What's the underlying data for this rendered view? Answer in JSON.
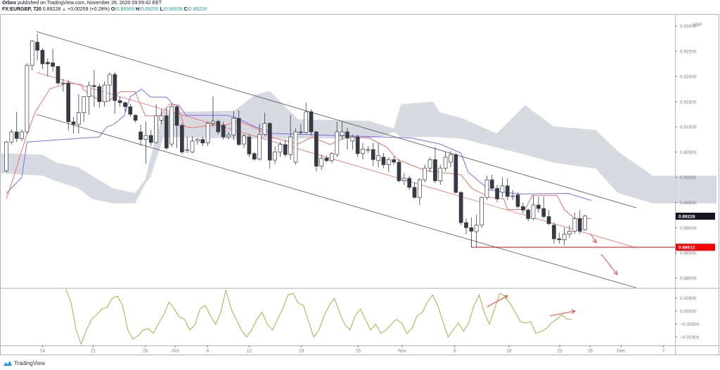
{
  "header": {
    "author": "Orbex",
    "published": "published on TradingView.com, November 26, 2020 09:59:42 EET",
    "symbol": "FX:EURGBP, 720",
    "last": "0.89228",
    "change": "+0.00259 (+0.29%)",
    "o_label": "O:",
    "o": "0.88969",
    "h_label": "H:",
    "h": "0.89255",
    "l_label": "L:",
    "l": "0.88939",
    "c_label": "C:",
    "c": "0.89228"
  },
  "axis": {
    "currency": "GBP",
    "price_ticks": [
      "0.93000",
      "0.92500",
      "0.92000",
      "0.91500",
      "0.91000",
      "0.90500",
      "0.90000",
      "0.89500",
      "0.89000",
      "0.88500",
      "0.88000"
    ],
    "last_price_badge": "0.89228",
    "level_badge": "0.88612",
    "osc_ticks": [
      "0.00500",
      "0.00000",
      "−0.00500",
      "−0.01000"
    ],
    "time_ticks": [
      {
        "label": "14",
        "bar": 7
      },
      {
        "label": "21",
        "bar": 16.8
      },
      {
        "label": "28",
        "bar": 26.9
      },
      {
        "label": "Oct",
        "bar": 32.7
      },
      {
        "label": "6",
        "bar": 39
      },
      {
        "label": "12",
        "bar": 47
      },
      {
        "label": "19",
        "bar": 57.1
      },
      {
        "label": "26",
        "bar": 68.1
      },
      {
        "label": "Nov",
        "bar": 76.6
      },
      {
        "label": "9",
        "bar": 86.8
      },
      {
        "label": "16",
        "bar": 97.3
      },
      {
        "label": "23",
        "bar": 107.1
      },
      {
        "label": "26",
        "bar": 113
      },
      {
        "label": "Dec",
        "bar": 119
      },
      {
        "label": "7",
        "bar": 127.2
      }
    ]
  },
  "footer": {
    "brand": "TradingView"
  },
  "colors": {
    "bull": "#ffffff",
    "bear": "#363a45",
    "tenkan": "#f0716b",
    "kijun": "#7b6cf6",
    "cloud": "#d1d4dc",
    "level": "#ff0000",
    "oscillator": "#a3b14a",
    "up": "#26a69a"
  },
  "chart_data": {
    "type": "candlestick",
    "interval": "720",
    "price_range": [
      0.878,
      0.931
    ],
    "level": 0.88612,
    "candles": [
      [
        0.9013,
        0.9072,
        0.901,
        0.907
      ],
      [
        0.907,
        0.9095,
        0.9065,
        0.909
      ],
      [
        0.909,
        0.913,
        0.907,
        0.9077
      ],
      [
        0.9077,
        0.9095,
        0.9072,
        0.909
      ],
      [
        0.909,
        0.9226,
        0.9086,
        0.9222
      ],
      [
        0.9222,
        0.9272,
        0.9212,
        0.927
      ],
      [
        0.9268,
        0.9285,
        0.9232,
        0.9252
      ],
      [
        0.9252,
        0.9256,
        0.9215,
        0.9225
      ],
      [
        0.9228,
        0.9236,
        0.92,
        0.9225
      ],
      [
        0.9227,
        0.9255,
        0.921,
        0.922
      ],
      [
        0.922,
        0.922,
        0.9184,
        0.9187
      ],
      [
        0.9187,
        0.9195,
        0.917,
        0.9187
      ],
      [
        0.9187,
        0.9193,
        0.9093,
        0.911
      ],
      [
        0.911,
        0.912,
        0.9087,
        0.9105
      ],
      [
        0.9105,
        0.9165,
        0.9087,
        0.9128
      ],
      [
        0.9128,
        0.916,
        0.911,
        0.916
      ],
      [
        0.916,
        0.919,
        0.9124,
        0.9182
      ],
      [
        0.9182,
        0.9213,
        0.914,
        0.918
      ],
      [
        0.918,
        0.9186,
        0.9138,
        0.915
      ],
      [
        0.915,
        0.919,
        0.914,
        0.9183
      ],
      [
        0.9183,
        0.9208,
        0.915,
        0.9204
      ],
      [
        0.9204,
        0.9208,
        0.9126,
        0.9152
      ],
      [
        0.9152,
        0.916,
        0.914,
        0.9148
      ],
      [
        0.9148,
        0.915,
        0.913,
        0.914
      ],
      [
        0.914,
        0.9146,
        0.912,
        0.9125
      ],
      [
        0.9123,
        0.9125,
        0.9108,
        0.9113
      ],
      [
        0.909,
        0.9104,
        0.9062,
        0.9075
      ],
      [
        0.9075,
        0.9111,
        0.9027,
        0.9083
      ],
      [
        0.9083,
        0.9094,
        0.9062,
        0.9069
      ],
      [
        0.9069,
        0.9145,
        0.9067,
        0.9122
      ],
      [
        0.9113,
        0.9135,
        0.9105,
        0.9122
      ],
      [
        0.9122,
        0.9138,
        0.9055,
        0.9058
      ],
      [
        0.9066,
        0.9145,
        0.906,
        0.914
      ],
      [
        0.914,
        0.9142,
        0.9058,
        0.9103
      ],
      [
        0.9103,
        0.9108,
        0.9046,
        0.905
      ],
      [
        0.9053,
        0.9081,
        0.9048,
        0.9055
      ],
      [
        0.905,
        0.9081,
        0.9048,
        0.9072
      ],
      [
        0.9072,
        0.9078,
        0.9065,
        0.9075
      ],
      [
        0.9075,
        0.908,
        0.9062,
        0.9068
      ],
      [
        0.9068,
        0.911,
        0.9062,
        0.9107
      ],
      [
        0.9107,
        0.916,
        0.91,
        0.9111
      ],
      [
        0.9111,
        0.9115,
        0.9085,
        0.909
      ],
      [
        0.9103,
        0.911,
        0.9075,
        0.908
      ],
      [
        0.908,
        0.909,
        0.9075,
        0.9084
      ],
      [
        0.9084,
        0.9132,
        0.9073,
        0.9117
      ],
      [
        0.9117,
        0.9133,
        0.9062,
        0.9065
      ],
      [
        0.9066,
        0.9086,
        0.9058,
        0.9082
      ],
      [
        0.908,
        0.9085,
        0.904,
        0.9046
      ],
      [
        0.9047,
        0.905,
        0.9033,
        0.9036
      ],
      [
        0.9036,
        0.9106,
        0.9033,
        0.9085
      ],
      [
        0.9085,
        0.9128,
        0.9082,
        0.9107
      ],
      [
        0.9107,
        0.9109,
        0.9017,
        0.9034
      ],
      [
        0.9034,
        0.9062,
        0.9026,
        0.905
      ],
      [
        0.905,
        0.907,
        0.904,
        0.9065
      ],
      [
        0.9065,
        0.9075,
        0.904,
        0.9045
      ],
      [
        0.9045,
        0.9123,
        0.9035,
        0.908
      ],
      [
        0.903,
        0.9097,
        0.9025,
        0.909
      ],
      [
        0.909,
        0.9105,
        0.9085,
        0.9089
      ],
      [
        0.9089,
        0.9148,
        0.9086,
        0.913
      ],
      [
        0.913,
        0.9135,
        0.9083,
        0.909
      ],
      [
        0.909,
        0.9092,
        0.9012,
        0.9022
      ],
      [
        0.9022,
        0.9045,
        0.9015,
        0.9038
      ],
      [
        0.9038,
        0.9043,
        0.903,
        0.9033
      ],
      [
        0.9033,
        0.905,
        0.9028,
        0.9047
      ],
      [
        0.9045,
        0.911,
        0.904,
        0.909
      ],
      [
        0.9083,
        0.911,
        0.9075,
        0.909
      ],
      [
        0.909,
        0.9098,
        0.9055,
        0.9078
      ],
      [
        0.9072,
        0.9085,
        0.9055,
        0.908
      ],
      [
        0.908,
        0.9085,
        0.904,
        0.9047
      ],
      [
        0.9047,
        0.9068,
        0.9035,
        0.9056
      ],
      [
        0.9055,
        0.9062,
        0.9048,
        0.9055
      ],
      [
        0.9055,
        0.9068,
        0.9022,
        0.9035
      ],
      [
        0.9033,
        0.9068,
        0.902,
        0.9043
      ],
      [
        0.904,
        0.9048,
        0.9018,
        0.9025
      ],
      [
        0.9025,
        0.904,
        0.901,
        0.9035
      ],
      [
        0.9035,
        0.9042,
        0.9025,
        0.903
      ],
      [
        0.903,
        0.9036,
        0.899,
        0.8993
      ],
      [
        0.8993,
        0.9008,
        0.8985,
        0.8998
      ],
      [
        0.8998,
        0.9003,
        0.8975,
        0.898
      ],
      [
        0.898,
        0.899,
        0.8958,
        0.896
      ],
      [
        0.896,
        0.8998,
        0.8945,
        0.8995
      ],
      [
        0.8995,
        0.9025,
        0.899,
        0.9018
      ],
      [
        0.9018,
        0.904,
        0.901,
        0.9035
      ],
      [
        0.9035,
        0.906,
        0.8988,
        0.8993
      ],
      [
        0.8993,
        0.9025,
        0.8985,
        0.9018
      ],
      [
        0.9018,
        0.905,
        0.9012,
        0.904
      ],
      [
        0.903,
        0.9052,
        0.902,
        0.9045
      ],
      [
        0.9045,
        0.9048,
        0.8968,
        0.897
      ],
      [
        0.897,
        0.8972,
        0.8905,
        0.891
      ],
      [
        0.891,
        0.8918,
        0.8887,
        0.89
      ],
      [
        0.89,
        0.892,
        0.8861,
        0.8893
      ],
      [
        0.8892,
        0.8926,
        0.8861,
        0.8905
      ],
      [
        0.8905,
        0.8962,
        0.89,
        0.896
      ],
      [
        0.896,
        0.9003,
        0.8955,
        0.8995
      ],
      [
        0.8995,
        0.9005,
        0.8975,
        0.8978
      ],
      [
        0.8978,
        0.8985,
        0.895,
        0.8957
      ],
      [
        0.897,
        0.9,
        0.896,
        0.8983
      ],
      [
        0.8983,
        0.8998,
        0.8955,
        0.8962
      ],
      [
        0.8962,
        0.8975,
        0.8955,
        0.8963
      ],
      [
        0.8965,
        0.897,
        0.8938,
        0.8942
      ],
      [
        0.8942,
        0.895,
        0.8928,
        0.8935
      ],
      [
        0.8935,
        0.8938,
        0.8913,
        0.8918
      ],
      [
        0.8918,
        0.8965,
        0.8915,
        0.8945
      ],
      [
        0.8945,
        0.8962,
        0.893,
        0.8938
      ],
      [
        0.8938,
        0.8962,
        0.8918,
        0.8922
      ],
      [
        0.8922,
        0.8935,
        0.8905,
        0.8908
      ],
      [
        0.8905,
        0.891,
        0.8868,
        0.8878
      ],
      [
        0.8878,
        0.889,
        0.8868,
        0.8876
      ],
      [
        0.8876,
        0.89,
        0.8865,
        0.8887
      ],
      [
        0.8887,
        0.8905,
        0.888,
        0.8893
      ],
      [
        0.8893,
        0.893,
        0.8888,
        0.8918
      ],
      [
        0.8918,
        0.8935,
        0.8888,
        0.8893
      ],
      [
        0.8896,
        0.8926,
        0.8894,
        0.8923
      ]
    ],
    "kijun": [
      [
        0,
        0.8968
      ],
      [
        3,
        0.9
      ],
      [
        4,
        0.907
      ],
      [
        18,
        0.908
      ],
      [
        19.4,
        0.91
      ],
      [
        20.7,
        0.9104
      ],
      [
        22.8,
        0.9122
      ],
      [
        24,
        0.916
      ],
      [
        26.2,
        0.9175
      ],
      [
        27.9,
        0.9159
      ],
      [
        31,
        0.9159
      ],
      [
        32.4,
        0.9143
      ],
      [
        33.4,
        0.9143
      ],
      [
        34.8,
        0.9123
      ],
      [
        42.7,
        0.9123
      ],
      [
        44.8,
        0.9117
      ],
      [
        48.2,
        0.91
      ],
      [
        51.6,
        0.9087
      ],
      [
        78.4,
        0.9078
      ],
      [
        83.9,
        0.9066
      ],
      [
        88,
        0.9048
      ],
      [
        89.4,
        0.901
      ],
      [
        93.5,
        0.8975
      ],
      [
        99,
        0.8967
      ],
      [
        108.7,
        0.8968
      ],
      [
        113.2,
        0.8954
      ]
    ],
    "tenkan": [
      [
        0,
        0.8957
      ],
      [
        1.5,
        0.9003
      ],
      [
        3.8,
        0.908
      ],
      [
        5.6,
        0.9129
      ],
      [
        8.4,
        0.9175
      ],
      [
        11.8,
        0.9187
      ],
      [
        14.6,
        0.9184
      ],
      [
        14.8,
        0.9175
      ],
      [
        17.7,
        0.9154
      ],
      [
        19.6,
        0.915
      ],
      [
        22.1,
        0.917
      ],
      [
        24.9,
        0.917
      ],
      [
        26.9,
        0.9122
      ],
      [
        29.7,
        0.9122
      ],
      [
        31.7,
        0.9146
      ],
      [
        33.1,
        0.9143
      ],
      [
        34.5,
        0.9101
      ],
      [
        36.1,
        0.9098
      ],
      [
        40,
        0.9104
      ],
      [
        42.7,
        0.9104
      ],
      [
        44.8,
        0.9112
      ],
      [
        48.2,
        0.9098
      ],
      [
        51,
        0.908
      ],
      [
        56.5,
        0.9066
      ],
      [
        59.2,
        0.908
      ],
      [
        62.6,
        0.9065
      ],
      [
        66.1,
        0.908
      ],
      [
        70.2,
        0.9078
      ],
      [
        73.6,
        0.906
      ],
      [
        75.7,
        0.9035
      ],
      [
        81.2,
        0.9013
      ],
      [
        88,
        0.9005
      ],
      [
        90.1,
        0.8978
      ],
      [
        93.5,
        0.896
      ],
      [
        96.3,
        0.8957
      ],
      [
        97,
        0.8936
      ],
      [
        100.4,
        0.8936
      ],
      [
        101.8,
        0.8964
      ],
      [
        106.6,
        0.8964
      ],
      [
        108,
        0.8936
      ],
      [
        110,
        0.8918
      ],
      [
        113.2,
        0.8918
      ]
    ],
    "cloud": [
      [
        -1.2,
        0.9048,
        0.9008
      ],
      [
        7,
        0.9045,
        0.9003
      ],
      [
        9.8,
        0.9029,
        0.8992
      ],
      [
        13.9,
        0.902,
        0.8978
      ],
      [
        16.6,
        0.9003,
        0.8957
      ],
      [
        20.7,
        0.8978,
        0.8948
      ],
      [
        24.9,
        0.8969,
        0.8948
      ],
      [
        26.9,
        0.8996,
        0.8987
      ],
      [
        27.9,
        0.904,
        0.9
      ],
      [
        30.4,
        0.9129,
        0.908
      ],
      [
        44.1,
        0.9132,
        0.9077
      ],
      [
        48.2,
        0.9164,
        0.9077
      ],
      [
        51,
        0.9171,
        0.9077
      ],
      [
        53.7,
        0.9143,
        0.9077
      ],
      [
        56.5,
        0.9115,
        0.9077
      ],
      [
        70.2,
        0.9112,
        0.9077
      ],
      [
        73.6,
        0.9101,
        0.9083
      ],
      [
        75,
        0.9097,
        0.909
      ],
      [
        76.4,
        0.9145,
        0.908
      ],
      [
        82.6,
        0.915,
        0.908
      ],
      [
        83.9,
        0.9129,
        0.9079
      ],
      [
        88,
        0.9118,
        0.9077
      ],
      [
        94.9,
        0.9087,
        0.9059
      ],
      [
        100.4,
        0.9143,
        0.9045
      ],
      [
        105.9,
        0.9101,
        0.9029
      ],
      [
        114.1,
        0.9094,
        0.9017
      ],
      [
        118.3,
        0.9052,
        0.8969
      ],
      [
        125.1,
        0.9003,
        0.8948
      ],
      [
        137.5,
        0.9003,
        0.8948
      ]
    ],
    "oscillator_start_bar": 11.5,
    "oscillator": [
      0.0084,
      0.0035,
      -0.0073,
      -0.0127,
      -0.0073,
      -0.0032,
      -0.0014,
      0.0008,
      0.0014,
      0.0049,
      0.0057,
      0.0022,
      -0.0073,
      -0.0108,
      -0.0095,
      -0.0073,
      -0.0068,
      -0.0086,
      -0.0046,
      -0.0014,
      0.0035,
      0.0008,
      -0.0024,
      -0.0032,
      -0.0073,
      -0.0054,
      0.0008,
      0.0022,
      -0.0019,
      -0.0051,
      -0.0005,
      0.0081,
      0.0008,
      -0.0032,
      -0.0073,
      -0.01,
      -0.0073,
      -0.0032,
      -0.0005,
      -0.0051,
      -0.0073,
      -0.0032,
      0.0008,
      0.0062,
      0.0068,
      0.003,
      0.0022,
      -0.0041,
      -0.01,
      -0.0073,
      -0.0019,
      0.0022,
      0.0049,
      -0.0005,
      -0.0051,
      -0.0073,
      -0.0019,
      0.0008,
      -0.0032,
      -0.0073,
      -0.0051,
      -0.0086,
      -0.0073,
      -0.0051,
      -0.0032,
      -0.0046,
      -0.0086,
      -0.0068,
      -0.0019,
      -0.0005,
      0.0035,
      0.0062,
      0.0022,
      -0.0041,
      -0.01,
      -0.0073,
      -0.0046,
      -0.0078,
      -0.0046,
      0.0022,
      0.0062,
      -0.0005,
      -0.0051,
      0.0008,
      0.0068,
      0.0057,
      0.003,
      -0.0005,
      -0.0041,
      -0.0046,
      -0.0041,
      -0.0086,
      -0.0078,
      -0.0068,
      -0.0046,
      -0.0032,
      -0.0014,
      -0.0032,
      -0.0032
    ],
    "oscillator_range": [
      -0.012,
      0.008
    ]
  }
}
